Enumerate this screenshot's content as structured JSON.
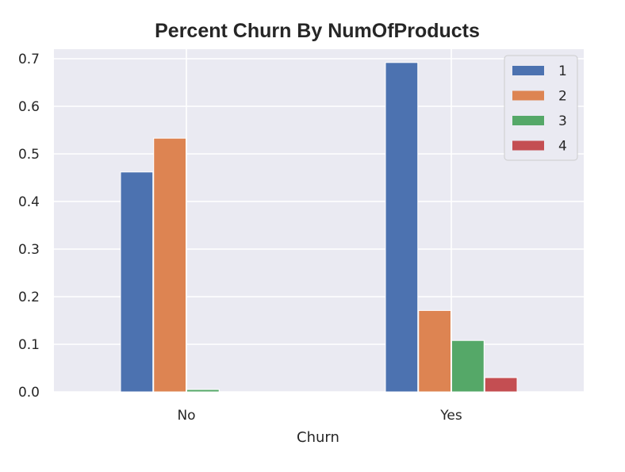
{
  "chart_data": {
    "type": "bar",
    "title": "Percent Churn By NumOfProducts",
    "xlabel": "Churn",
    "ylabel": "",
    "categories": [
      "No",
      "Yes"
    ],
    "series": [
      {
        "name": "1",
        "color": "#4c72b0",
        "values": [
          0.462,
          0.692
        ]
      },
      {
        "name": "2",
        "color": "#dd8452",
        "values": [
          0.533,
          0.171
        ]
      },
      {
        "name": "3",
        "color": "#55a868",
        "values": [
          0.005,
          0.108
        ]
      },
      {
        "name": "4",
        "color": "#c44e52",
        "values": [
          0.0,
          0.03
        ]
      }
    ],
    "ylim": [
      0,
      0.72
    ],
    "yticks": [
      "0.0",
      "0.1",
      "0.2",
      "0.3",
      "0.4",
      "0.5",
      "0.6",
      "0.7"
    ],
    "grid": true,
    "legend_position": "top-right",
    "background_color": "#eaeaf2"
  }
}
